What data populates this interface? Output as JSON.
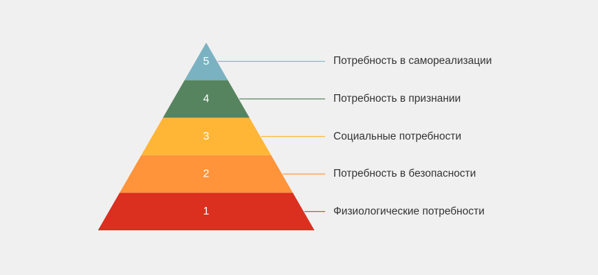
{
  "levels": [
    {
      "number": "1",
      "label": "Физиологические потребности",
      "color": "#DB2F20"
    },
    {
      "number": "2",
      "label": "Потребность в безопасности",
      "color": "#FF943A"
    },
    {
      "number": "3",
      "label": "Социальные потребности",
      "color": "#FFB637"
    },
    {
      "number": "4",
      "label": "Потребность в признании",
      "color": "#56845E"
    },
    {
      "number": "5",
      "label": "Потребность в самореализации",
      "color": "#7BB2C2"
    }
  ]
}
